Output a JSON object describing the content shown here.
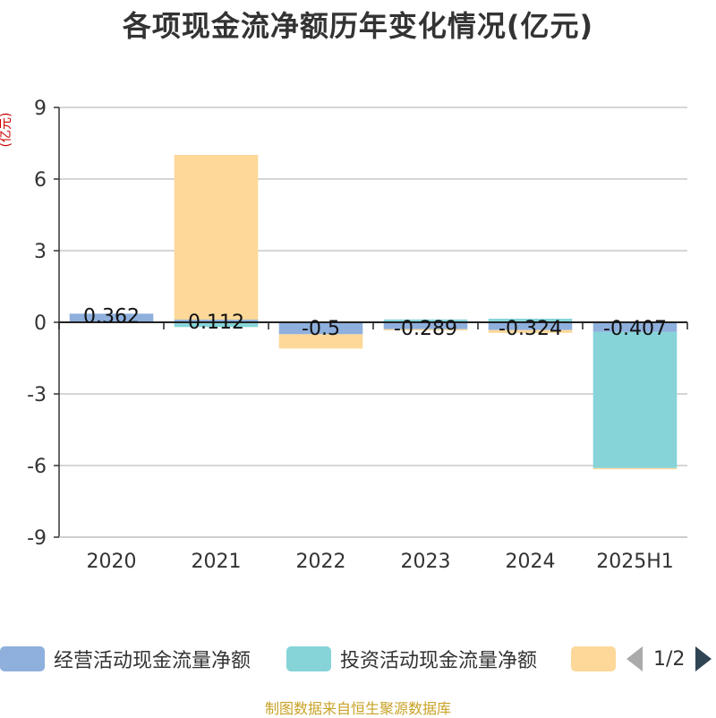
{
  "chart_data": {
    "type": "bar",
    "stacked": true,
    "title": "各项现金流净额历年变化情况(亿元)",
    "ylabel": "(亿元)",
    "ylim": [
      -9,
      9
    ],
    "yticks": [
      "9",
      "6",
      "3",
      "0",
      "-3",
      "-6",
      "-9"
    ],
    "ytick_values": [
      9,
      6,
      3,
      0,
      -3,
      -6,
      -9
    ],
    "categories": [
      "2020",
      "2021",
      "2022",
      "2023",
      "2024",
      "2025H1"
    ],
    "grid": true,
    "legend_position": "bottom",
    "series": [
      {
        "name": "经营活动现金流量净额",
        "color": "#8fb0dd",
        "values": [
          0.362,
          0.112,
          -0.5,
          -0.289,
          -0.324,
          -0.407
        ]
      },
      {
        "name": "投资活动现金流量净额",
        "color": "#86d4d8",
        "values": [
          0.0,
          -0.2,
          0.0,
          0.12,
          0.15,
          -5.7
        ]
      },
      {
        "name": "",
        "color": "#fdd899",
        "values": [
          0.0,
          6.9,
          -0.6,
          -0.05,
          -0.12,
          -0.05
        ]
      }
    ],
    "data_labels": [
      "0.362",
      "0.112",
      "-0.5",
      "-0.289",
      "-0.324",
      "-0.407"
    ]
  },
  "legend": {
    "items": [
      {
        "label": "经营活动现金流量净额",
        "color": "#8fb0dd"
      },
      {
        "label": "投资活动现金流量净额",
        "color": "#86d4d8"
      },
      {
        "label": "",
        "color": "#fdd899"
      }
    ],
    "page": "1/2"
  },
  "source": "制图数据来自恒生聚源数据库"
}
